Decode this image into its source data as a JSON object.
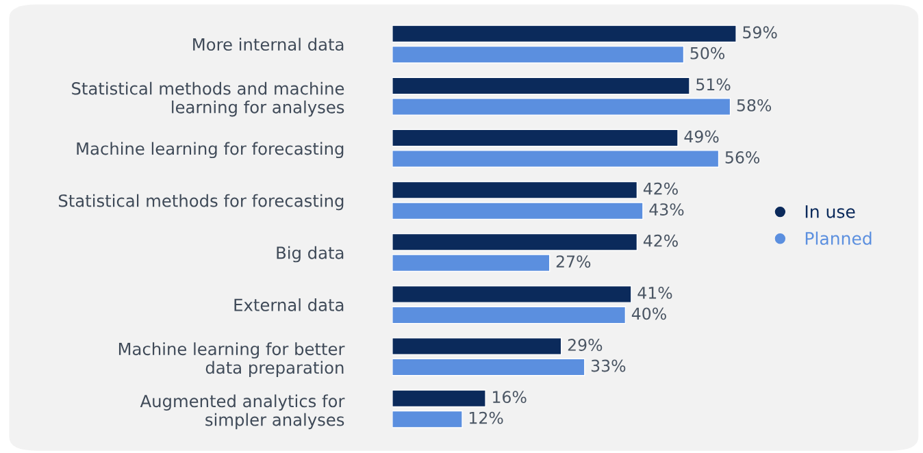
{
  "chart_data": {
    "type": "bar",
    "orientation": "horizontal",
    "legend": "right",
    "grid": false,
    "categories": [
      "More internal data",
      "Statistical methods and machine\nlearning for analyses",
      "Machine learning for forecasting",
      "Statistical methods for forecasting",
      "Big data",
      "External data",
      "Machine learning for better\ndata preparation",
      "Augmented analytics for\nsimpler analyses"
    ],
    "series": [
      {
        "name": "In use",
        "color": "#0b2a5b",
        "values": [
          59,
          51,
          49,
          42,
          42,
          41,
          29,
          16
        ],
        "value_labels": [
          "59%",
          "51%",
          "49%",
          "42%",
          "42%",
          "41%",
          "29%",
          "16%"
        ]
      },
      {
        "name": "Planned",
        "color": "#5b8fdf",
        "values": [
          50,
          58,
          56,
          43,
          27,
          40,
          33,
          12
        ],
        "value_labels": [
          "50%",
          "58%",
          "56%",
          "43%",
          "27%",
          "40%",
          "33%",
          "12%"
        ]
      }
    ]
  }
}
